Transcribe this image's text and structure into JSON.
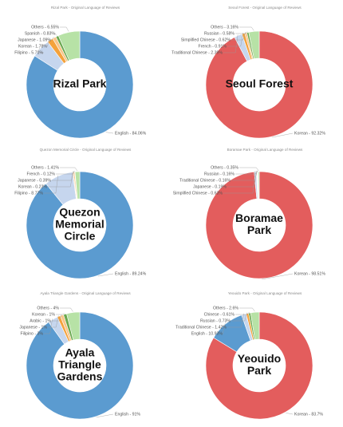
{
  "chart_data": [
    {
      "type": "donut",
      "title": "Rizal Park - Original Language of Reviews",
      "center_label": [
        "Rizal Park"
      ],
      "values": [
        84.06,
        5.71,
        1.78,
        1.09,
        0.83,
        6.55
      ],
      "value_labels": [
        "English - 84.06%",
        "Filipino - 5.71%",
        "Korean - 1.78%",
        "Japanese - 1.09%",
        "Spanish - 0.83%",
        "Others - 6.55%"
      ],
      "colors": [
        "#5b9bd0",
        "#c6d6ee",
        "#f4a23c",
        "#f7c58a",
        "#6aa84f",
        "#b7e2a6"
      ]
    },
    {
      "type": "donut",
      "title": "Seoul Forest - Original Language of Reviews",
      "center_label": [
        "Seoul Forest"
      ],
      "values": [
        92.32,
        2.39,
        0.91,
        0.62,
        0.58,
        3.16
      ],
      "value_labels": [
        "Korean - 92.32%",
        "Traditional Chinese - 2.39%",
        "French - 0.91%",
        "Simplified Chinese - 0.62%",
        "Russian - 0.58%",
        "Others - 3.16%"
      ],
      "colors": [
        "#e35d5d",
        "#c6d6ee",
        "#f4a23c",
        "#f7c58a",
        "#6aa84f",
        "#b7e2a6"
      ]
    },
    {
      "type": "donut",
      "title": "Quezon Memorial Circle - Original Language of Reviews",
      "center_label": [
        "Quezon",
        "Memorial",
        "Circle"
      ],
      "values": [
        89.24,
        8.77,
        0.23,
        0.39,
        0.12,
        1.41
      ],
      "value_labels": [
        "English - 89.24%",
        "Filipino - 8.77%",
        "Korean - 0.23%",
        "Japanese - 0.39%",
        "French - 0.12%",
        "Others - 1.41%"
      ],
      "colors": [
        "#5b9bd0",
        "#c6d6ee",
        "#f4a23c",
        "#f7c58a",
        "#6aa84f",
        "#b7e2a6"
      ]
    },
    {
      "type": "donut",
      "title": "Boramae Park - Original Language of Reviews",
      "center_label": [
        "Boramae",
        "Park"
      ],
      "values": [
        98.51,
        0.63,
        0.19,
        0.16,
        0.16,
        0.35
      ],
      "value_labels": [
        "Korean - 98.51%",
        "Simplified Chinese - 0.63%",
        "Japanese - 0.19%",
        "Traditional Chinese - 0.16%",
        "Russian - 0.16%",
        "Others - 0.35%"
      ],
      "colors": [
        "#e35d5d",
        "#c6d6ee",
        "#f4a23c",
        "#f7c58a",
        "#6aa84f",
        "#b7e2a6"
      ]
    },
    {
      "type": "donut",
      "title": "Ayala Triangle Gardens - Original Language of Reviews",
      "center_label": [
        "Ayala",
        "Triangle",
        "Gardens"
      ],
      "values": [
        91,
        3,
        1,
        1,
        1,
        4
      ],
      "value_labels": [
        "English - 91%",
        "Filipino - 3%",
        "Japanese - 1%",
        "Arabic - 1%",
        "Korean - 1%",
        "Others - 4%"
      ],
      "colors": [
        "#5b9bd0",
        "#c6d6ee",
        "#f4a23c",
        "#f7c58a",
        "#6aa84f",
        "#b7e2a6"
      ]
    },
    {
      "type": "donut",
      "title": "Yeouido Park - Original Language of Reviews",
      "center_label": [
        "Yeouido",
        "Park"
      ],
      "values": [
        83.7,
        10.93,
        1.42,
        0.73,
        0.61,
        2.6
      ],
      "value_labels": [
        "Korean - 83.7%",
        "English - 10.93%",
        "Traditional Chinese - 1.42%",
        "Russian - 0.73%",
        "Chinese - 0.61%",
        "Others - 2.6%"
      ],
      "colors": [
        "#e35d5d",
        "#5b9bd0",
        "#c6d6ee",
        "#f4a23c",
        "#6aa84f",
        "#b7e2a6"
      ]
    }
  ]
}
